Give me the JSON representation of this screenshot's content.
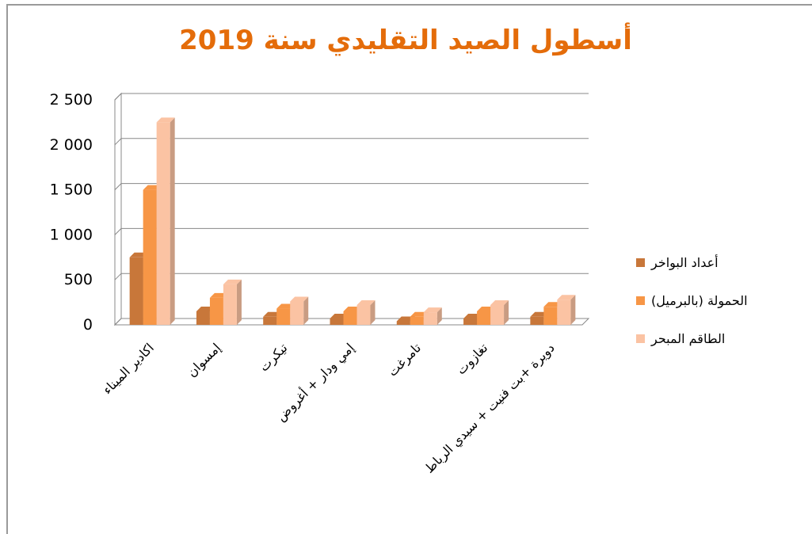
{
  "chart_data": {
    "type": "bar3d",
    "title": "أسطول الصيد التقليدي سنة 2019",
    "categories": [
      "اكادير الميناء",
      "إمسوان",
      "تيكرت",
      "إمي ودار + أغروض",
      "تامرغت",
      "تغازوت",
      "دويرة +بت فنيت + سيدي الرباط"
    ],
    "series": [
      {
        "name": "أعداد البواخر",
        "color": "#c8773a",
        "values": [
          750,
          150,
          90,
          70,
          40,
          70,
          90
        ]
      },
      {
        "name": "الحمولة  (بالبرميل)",
        "color": "#f79646",
        "values": [
          1500,
          300,
          180,
          150,
          90,
          150,
          200
        ]
      },
      {
        "name": "الطاقم المبحر",
        "color": "#fbc3a3",
        "values": [
          2250,
          450,
          260,
          220,
          140,
          220,
          280
        ]
      }
    ],
    "ylim": [
      0,
      2500
    ],
    "yticks": [
      0,
      500,
      {
        "value": 1000,
        "label": "1 000"
      },
      {
        "value": 1500,
        "label": "1 500"
      },
      {
        "value": 2000,
        "label": "2 000"
      },
      {
        "value": 2500,
        "label": "2 500"
      }
    ],
    "grid": true,
    "legend": "right"
  }
}
